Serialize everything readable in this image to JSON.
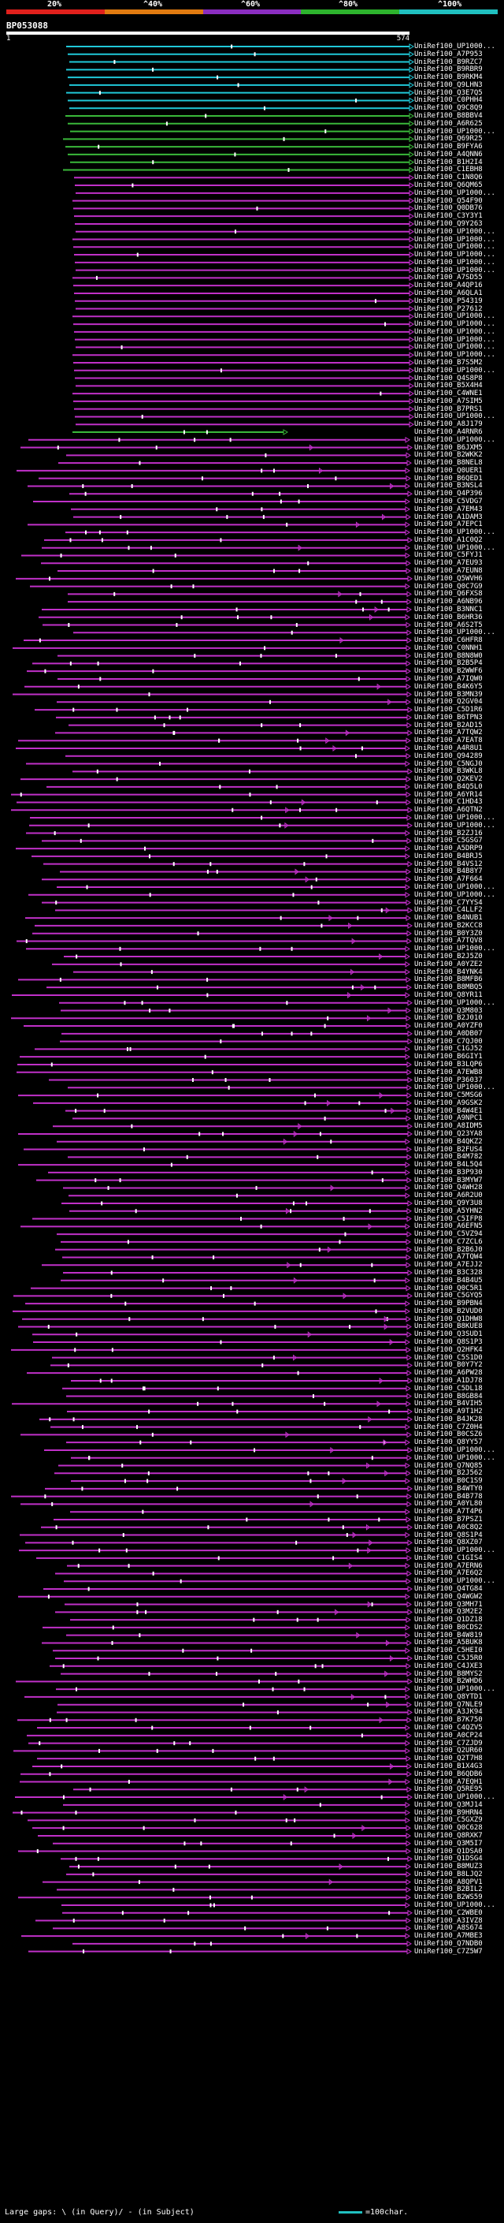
{
  "window": {
    "title": "BP053088"
  },
  "scale": {
    "labels": [
      "20%",
      "^40%",
      "^60%",
      "^80%",
      "^100%"
    ],
    "colors": [
      "#e0201c",
      "#e07a10",
      "#8a2dc0",
      "#2db32d",
      "#20c0c0"
    ]
  },
  "query": {
    "name": "BP053088",
    "start": "1",
    "end": "574"
  },
  "hit_colors": {
    "cyan": "#20c8d8",
    "green": "#3ab83a",
    "magenta": "#c030c8",
    "gap": "#ffffff"
  },
  "hits": [
    "UniRef100_UP1000...",
    "UniRef100_A7P953",
    "UniRef100_B9RZC7",
    "UniRef100_B9RBR9",
    "UniRef100_B9RKM4",
    "UniRef100_Q9LHN3",
    "UniRef100_Q3E7Q5",
    "UniRef100_C0PHH4",
    "UniRef100_Q9C8Q9",
    "UniRef100_B8BBV4",
    "UniRef100_A6R625",
    "UniRef100_UP1000...",
    "UniRef100_Q69R25",
    "UniRef100_B9FYA6",
    "UniRef100_A4QNN6",
    "UniRef100_B1H2I4",
    "UniRef100_C1EBH8",
    "UniRef100_C1N8Q6",
    "UniRef100_Q6QM65",
    "UniRef100_UP1000...",
    "UniRef100_Q54F90",
    "UniRef100_Q0DB76",
    "UniRef100_C3Y3Y1",
    "UniRef100_Q9Y263",
    "UniRef100_UP1000...",
    "UniRef100_UP1000...",
    "UniRef100_UP1000...",
    "UniRef100_UP1000...",
    "UniRef100_UP1000...",
    "UniRef100_UP1000...",
    "UniRef100_A7SD55",
    "UniRef100_A4QP16",
    "UniRef100_A6QLA1",
    "UniRef100_P54319",
    "UniRef100_P27612",
    "UniRef100_UP1000...",
    "UniRef100_UP1000...",
    "UniRef100_UP1000...",
    "UniRef100_UP1000...",
    "UniRef100_UP1000...",
    "UniRef100_UP1000...",
    "UniRef100_B7S5M2",
    "UniRef100_UP1000...",
    "UniRef100_Q4S8P8",
    "UniRef100_B5X4H4",
    "UniRef100_C4WNE1",
    "UniRef100_A7SIM5",
    "UniRef100_B7PRS1",
    "UniRef100_UP1000...",
    "UniRef100_A8J179",
    "UniRef100_A4RNR6",
    "UniRef100_UP1000...",
    "UniRef100_B6JXM5",
    "UniRef100_B2WKK2",
    "UniRef100_B8NEL8",
    "UniRef100_Q0UER1",
    "UniRef100_B6QED1",
    "UniRef100_B3NSL4",
    "UniRef100_Q4P396",
    "UniRef100_C5VDG7",
    "UniRef100_A7EM43",
    "UniRef100_A1DAM3",
    "UniRef100_A7EPC1",
    "UniRef100_UP1000...",
    "UniRef100_A1C0Q2",
    "UniRef100_UP1000...",
    "UniRef100_C5FYJ1",
    "UniRef100_A7EU93",
    "UniRef100_A7EUN8",
    "UniRef100_Q5WVH6",
    "UniRef100_Q0C7G9",
    "UniRef100_Q6FXS8",
    "UniRef100_A6NB96",
    "UniRef100_B3NNC1",
    "UniRef100_B6HR36",
    "UniRef100_A6S2T5",
    "UniRef100_UP1000...",
    "UniRef100_C6HFR8",
    "UniRef100_C0NNH1",
    "UniRef100_B8N8W0",
    "UniRef100_B2B5P4",
    "UniRef100_B2WWF6",
    "UniRef100_A7IQW0",
    "UniRef100_B4K6Y5",
    "UniRef100_B3MN39",
    "UniRef100_Q2GV04",
    "UniRef100_C5D1R6",
    "UniRef100_B6TPN3",
    "UniRef100_B2AD15",
    "UniRef100_A7TQW2",
    "UniRef100_A7EAT8",
    "UniRef100_A4R8U1",
    "UniRef100_Q94289",
    "UniRef100_C5NGJ0",
    "UniRef100_B3WKL8",
    "UniRef100_Q2KEV2",
    "UniRef100_B4Q5L0",
    "UniRef100_A6YR14",
    "UniRef100_C1HD43",
    "UniRef100_A6QTN2",
    "UniRef100_UP1000...",
    "UniRef100_UP1000...",
    "UniRef100_B2ZJ16",
    "UniRef100_C5GSG7",
    "UniRef100_A5DRP9",
    "UniRef100_B4BRJ5",
    "UniRef100_B4VS12",
    "UniRef100_B4B8Y7",
    "UniRef100_A7F664",
    "UniRef100_UP1000...",
    "UniRef100_UP1000...",
    "UniRef100_C7YYS4",
    "UniRef100_C4LLF2",
    "UniRef100_B4NUB1",
    "UniRef100_B2KCC8",
    "UniRef100_B0Y3Z0",
    "UniRef100_A7TQV8",
    "UniRef100_UP1000...",
    "UniRef100_B2J5Z0",
    "UniRef100_A0YZE2",
    "UniRef100_B4YNK4",
    "UniRef100_B8MFB6",
    "UniRef100_B8MBQ5",
    "UniRef100_Q8YR11",
    "UniRef100_UP1000...",
    "UniRef100_Q3M803",
    "UniRef100_B2J010",
    "UniRef100_A0YZF0",
    "UniRef100_A0DB07",
    "UniRef100_C7QJ00",
    "UniRef100_C1GJ52",
    "UniRef100_B6GIY1",
    "UniRef100_B3LQP6",
    "UniRef100_A7EWB8",
    "UniRef100_P36037",
    "UniRef100_UP1000...",
    "UniRef100_C5MSG6",
    "UniRef100_A9GSK2",
    "UniRef100_B4W4E1",
    "UniRef100_A9NPC1",
    "UniRef100_A8IDM5",
    "UniRef100_Q23YA8",
    "UniRef100_B4QKZ2",
    "UniRef100_B2FUS4",
    "UniRef100_B4M782",
    "UniRef100_B4L5Q4",
    "UniRef100_B3P930",
    "UniRef100_B3MYW7",
    "UniRef100_Q4WH28",
    "UniRef100_A6R2U0",
    "UniRef100_Q9Y3U8",
    "UniRef100_A5YHN2",
    "UniRef100_C5IFP8",
    "UniRef100_A6EFN5",
    "UniRef100_C5VZ94",
    "UniRef100_C7ZCL6",
    "UniRef100_B2B6J0",
    "UniRef100_A7TQW4",
    "UniRef100_A7EJJ2",
    "UniRef100_B3C328",
    "UniRef100_B4B4U5",
    "UniRef100_Q0C5R1",
    "UniRef100_C5GYQ5",
    "UniRef100_B9PBN4",
    "UniRef100_B2VUD0",
    "UniRef100_Q1DHW8",
    "UniRef100_B8KUE8",
    "UniRef100_Q3SUD1",
    "UniRef100_Q8S1P3",
    "UniRef100_Q2HFK4",
    "UniRef100_C5S1D0",
    "UniRef100_B0Y7Y2",
    "UniRef100_A6PW28",
    "UniRef100_A1DJ78",
    "UniRef100_C5DL18",
    "UniRef100_B8GB84",
    "UniRef100_B4VIH5",
    "UniRef100_A9T1H2",
    "UniRef100_B4JK28",
    "UniRef100_C7Z0H4",
    "UniRef100_B0CSZ6",
    "UniRef100_Q8YY57",
    "UniRef100_UP1000...",
    "UniRef100_UP1000...",
    "UniRef100_Q7NQ85",
    "UniRef100_B2J562",
    "UniRef100_B0C1S9",
    "UniRef100_B4WTY0",
    "UniRef100_B4B778",
    "UniRef100_A0YL80",
    "UniRef100_A7T4P6",
    "UniRef100_B7PSZ1",
    "UniRef100_A0C8Q2",
    "UniRef100_Q8S1P4",
    "UniRef100_Q8XZ07",
    "UniRef100_UP1000...",
    "UniRef100_C1GIS4",
    "UniRef100_A7ERN6",
    "UniRef100_A7E6Q2",
    "UniRef100_UP1000...",
    "UniRef100_Q4TG84",
    "UniRef100_Q4WGW2",
    "UniRef100_Q3MH71",
    "UniRef100_Q3M2E2",
    "UniRef100_Q1DZ18",
    "UniRef100_B0CDS2",
    "UniRef100_B4W819",
    "UniRef100_A5BUK8",
    "UniRef100_C5HEI0",
    "UniRef100_C5J5R0",
    "UniRef100_C4JXE3",
    "UniRef100_B8MYS2",
    "UniRef100_B2WHD6",
    "UniRef100_UP1000...",
    "UniRef100_Q8YTD1",
    "UniRef100_Q7NLE9",
    "UniRef100_A3JK94",
    "UniRef100_B7K750",
    "UniRef100_C4QZV5",
    "UniRef100_A0CP24",
    "UniRef100_C7ZJD9",
    "UniRef100_Q2UR60",
    "UniRef100_Q2T7H8",
    "UniRef100_B1X4G3",
    "UniRef100_B6QDB6",
    "UniRef100_A7EQH1",
    "UniRef100_Q5RE95",
    "UniRef100_UP1000...",
    "UniRef100_Q3MJ14",
    "UniRef100_B9HRN4",
    "UniRef100_C5GXZ9",
    "UniRef100_Q0C628",
    "UniRef100_Q8RXK7",
    "UniRef100_Q3M5I7",
    "UniRef100_Q1DSA0",
    "UniRef100_Q1DSG4",
    "UniRef100_B8MUZ3",
    "UniRef100_B8LJQ2",
    "UniRef100_A8QPV1",
    "UniRef100_B2BIL2",
    "UniRef100_B2WS59",
    "UniRef100_UP1000...",
    "UniRef100_C2WBE0",
    "UniRef100_A3IVZ8",
    "UniRef100_A8S674",
    "UniRef100_A7MBE3",
    "UniRef100_Q7NDB0",
    "UniRef100_C7Z5W7"
  ],
  "legend": {
    "text": "Large gaps: \\ (in Query)/ - (in Subject)",
    "key": "=100char."
  }
}
